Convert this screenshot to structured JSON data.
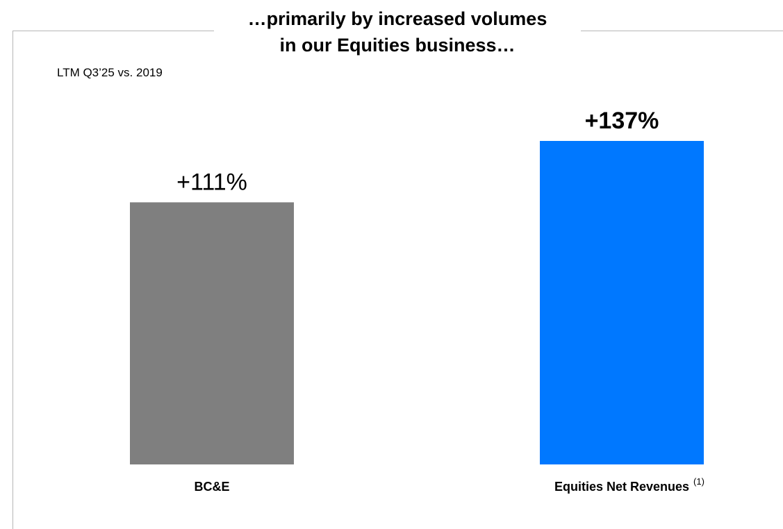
{
  "header": {
    "title_line1": "…primarily by increased volumes",
    "title_line2": "in our Equities business…",
    "subtitle": "LTM Q3’25 vs. 2019"
  },
  "chart_data": {
    "type": "bar",
    "title": "…primarily by increased volumes in our Equities business…",
    "subtitle": "LTM Q3’25 vs. 2019",
    "categories": [
      "BC&E",
      "Equities Net Revenues"
    ],
    "category_footnotes": [
      "",
      "(1)"
    ],
    "values": [
      111,
      137
    ],
    "value_labels": [
      "+111%",
      "+137%"
    ],
    "value_label_bold": [
      false,
      true
    ],
    "bar_colors": [
      "#7f7f7f",
      "#0078ff"
    ],
    "ylim": [
      0,
      137
    ],
    "grid": false,
    "legend": "none"
  }
}
